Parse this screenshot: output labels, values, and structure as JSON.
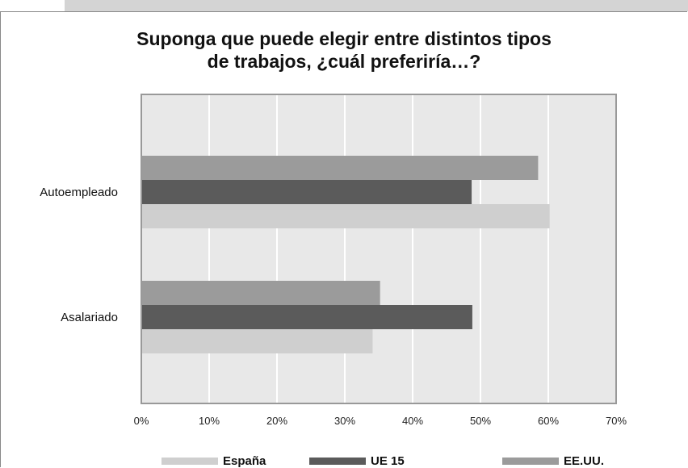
{
  "chart_data": {
    "type": "bar",
    "orientation": "horizontal",
    "title_lines": [
      "Suponga que puede elegir entre distintos tipos",
      "de trabajos, ¿cuál preferiría…?"
    ],
    "categories": [
      "Autoempleado",
      "Asalariado"
    ],
    "series": [
      {
        "name": "EE.UU.",
        "color": "#9b9b9b",
        "values": [
          58.5,
          35.2
        ]
      },
      {
        "name": "UE 15",
        "color": "#5b5b5b",
        "values": [
          48.7,
          48.8
        ]
      },
      {
        "name": "España",
        "color": "#cfcfcf",
        "values": [
          60.2,
          34.1
        ]
      }
    ],
    "legend_order": [
      "España",
      "UE 15",
      "EE.UU."
    ],
    "xlim": [
      0,
      70
    ],
    "xticks": [
      "0%",
      "10%",
      "20%",
      "30%",
      "40%",
      "50%",
      "60%",
      "70%"
    ],
    "plot_background": "#e8e8e8",
    "grid": "vertical",
    "legend_position": "bottom"
  }
}
